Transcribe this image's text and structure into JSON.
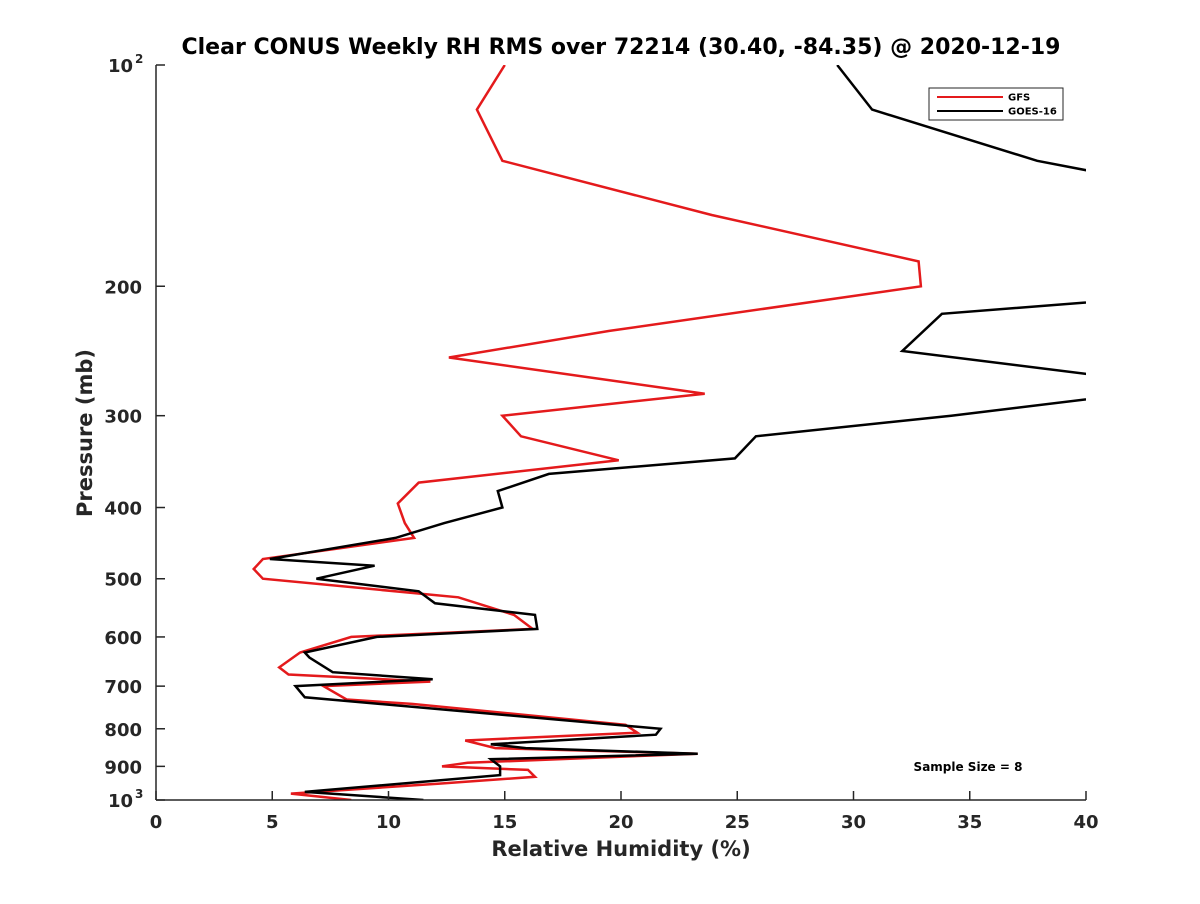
{
  "chart_data": {
    "type": "line",
    "title": "Clear CONUS Weekly RH RMS over 72214 (30.40, -84.35) @ 2020-12-19",
    "xlabel": "Relative Humidity (%)",
    "ylabel": "Pressure (mb)",
    "xlim": [
      0,
      40
    ],
    "ylim": [
      100,
      1000
    ],
    "yscale": "log",
    "yreversed": true,
    "grid": false,
    "x_ticks": [
      "0",
      "5",
      "10",
      "15",
      "20",
      "25",
      "30",
      "35",
      "40"
    ],
    "x_tick_values": [
      0,
      5,
      10,
      15,
      20,
      25,
      30,
      35,
      40
    ],
    "y_ticks": [
      {
        "value": 100,
        "base": "10",
        "sup": "2"
      },
      {
        "value": 200,
        "label": "200"
      },
      {
        "value": 300,
        "label": "300"
      },
      {
        "value": 400,
        "label": "400"
      },
      {
        "value": 500,
        "label": "500"
      },
      {
        "value": 600,
        "label": "600"
      },
      {
        "value": 700,
        "label": "700"
      },
      {
        "value": 800,
        "label": "800"
      },
      {
        "value": 900,
        "label": "900"
      },
      {
        "value": 1000,
        "base": "10",
        "sup": "3"
      }
    ],
    "legend": {
      "position": "top-right",
      "entries": [
        "GFS",
        "GOES-16"
      ]
    },
    "annotation": "Sample Size = 8",
    "series": [
      {
        "name": "GFS",
        "color": "#e41a1c",
        "points": [
          [
            15.0,
            100
          ],
          [
            13.8,
            115
          ],
          [
            14.9,
            135
          ],
          [
            23.9,
            160
          ],
          [
            32.8,
            185
          ],
          [
            32.9,
            200
          ],
          [
            19.5,
            230
          ],
          [
            12.6,
            250
          ],
          [
            23.6,
            280
          ],
          [
            14.9,
            300
          ],
          [
            15.7,
            320
          ],
          [
            19.9,
            345
          ],
          [
            11.3,
            370
          ],
          [
            10.4,
            395
          ],
          [
            10.7,
            420
          ],
          [
            11.1,
            440
          ],
          [
            4.6,
            470
          ],
          [
            4.2,
            485
          ],
          [
            4.6,
            500
          ],
          [
            13.0,
            530
          ],
          [
            15.4,
            560
          ],
          [
            16.2,
            585
          ],
          [
            8.4,
            600
          ],
          [
            6.2,
            630
          ],
          [
            5.3,
            660
          ],
          [
            5.7,
            675
          ],
          [
            11.8,
            690
          ],
          [
            7.2,
            700
          ],
          [
            8.2,
            730
          ],
          [
            11.0,
            740
          ],
          [
            20.2,
            790
          ],
          [
            20.7,
            810
          ],
          [
            13.3,
            830
          ],
          [
            14.6,
            850
          ],
          [
            23.3,
            865
          ],
          [
            13.4,
            890
          ],
          [
            12.3,
            900
          ],
          [
            16.0,
            910
          ],
          [
            16.3,
            930
          ],
          [
            12.2,
            950
          ],
          [
            5.8,
            980
          ],
          [
            8.4,
            1000
          ]
        ]
      },
      {
        "name": "GOES-16",
        "color": "#000000",
        "points": [
          [
            29.3,
            100
          ],
          [
            30.8,
            115
          ],
          [
            37.9,
            135
          ],
          [
            41.5,
            142
          ],
          [
            42.0,
            208
          ],
          [
            33.8,
            218
          ],
          [
            32.1,
            245
          ],
          [
            42.0,
            268
          ],
          [
            42.0,
            280
          ],
          [
            34.2,
            300
          ],
          [
            25.8,
            320
          ],
          [
            24.9,
            343
          ],
          [
            16.9,
            360
          ],
          [
            14.7,
            380
          ],
          [
            14.9,
            400
          ],
          [
            12.4,
            420
          ],
          [
            10.3,
            440
          ],
          [
            4.9,
            470
          ],
          [
            9.4,
            480
          ],
          [
            6.9,
            500
          ],
          [
            11.3,
            520
          ],
          [
            12.0,
            540
          ],
          [
            16.3,
            560
          ],
          [
            16.4,
            585
          ],
          [
            9.5,
            600
          ],
          [
            6.4,
            630
          ],
          [
            6.6,
            640
          ],
          [
            7.6,
            670
          ],
          [
            11.9,
            685
          ],
          [
            6.0,
            700
          ],
          [
            6.4,
            725
          ],
          [
            21.7,
            800
          ],
          [
            21.5,
            815
          ],
          [
            14.4,
            840
          ],
          [
            15.9,
            850
          ],
          [
            23.3,
            865
          ],
          [
            14.4,
            880
          ],
          [
            14.8,
            900
          ],
          [
            14.8,
            925
          ],
          [
            6.4,
            975
          ],
          [
            11.5,
            1000
          ]
        ]
      }
    ]
  }
}
